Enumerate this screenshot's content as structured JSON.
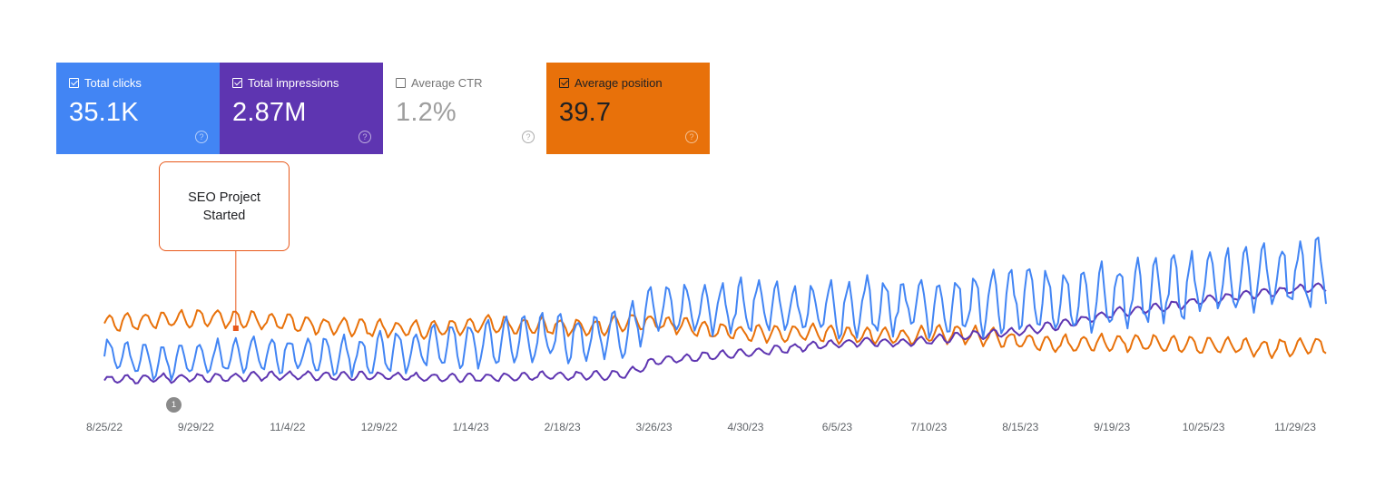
{
  "metrics": [
    {
      "label": "Total clicks",
      "value": "35.1K",
      "checked": true
    },
    {
      "label": "Total impressions",
      "value": "2.87M",
      "checked": true
    },
    {
      "label": "Average CTR",
      "value": "1.2%",
      "checked": false
    },
    {
      "label": "Average position",
      "value": "39.7",
      "checked": true
    }
  ],
  "colors": {
    "clicks": "#4285f4",
    "impressions": "#5e35b1",
    "position": "#e8710a",
    "annotation": "#e8581a"
  },
  "annotation": {
    "text": "SEO Project Started",
    "date": "2022-10-15"
  },
  "marker": {
    "label": "1",
    "date": "2022-10-08"
  },
  "chart_data": {
    "type": "line",
    "x_start": "2022-08-25",
    "x_end": "2023-12-12",
    "x_tick_labels": [
      "8/25/22",
      "9/29/22",
      "11/4/22",
      "12/9/22",
      "1/14/23",
      "2/18/23",
      "3/26/23",
      "4/30/23",
      "6/5/23",
      "7/10/23",
      "8/15/23",
      "9/19/23",
      "10/25/23",
      "11/29/23"
    ],
    "y_axes_hidden": true,
    "grid": false,
    "series": [
      {
        "name": "Total clicks",
        "color": "#4285f4",
        "points": [
          [
            "2022-08-25",
            62
          ],
          [
            "2022-09-15",
            58
          ],
          [
            "2022-10-06",
            60
          ],
          [
            "2022-10-27",
            62
          ],
          [
            "2022-11-17",
            61
          ],
          [
            "2022-12-08",
            62
          ],
          [
            "2022-12-29",
            65
          ],
          [
            "2023-01-19",
            67
          ],
          [
            "2023-02-09",
            70
          ],
          [
            "2023-03-02",
            70
          ],
          [
            "2023-03-16",
            74
          ],
          [
            "2023-03-26",
            85
          ],
          [
            "2023-04-15",
            85
          ],
          [
            "2023-05-05",
            86
          ],
          [
            "2023-05-25",
            84
          ],
          [
            "2023-06-14",
            86
          ],
          [
            "2023-07-04",
            87
          ],
          [
            "2023-07-24",
            86
          ],
          [
            "2023-08-13",
            89
          ],
          [
            "2023-09-02",
            89
          ],
          [
            "2023-09-22",
            91
          ],
          [
            "2023-10-12",
            95
          ],
          [
            "2023-11-01",
            98
          ],
          [
            "2023-11-21",
            100
          ],
          [
            "2023-12-12",
            103
          ]
        ],
        "swing": 7
      },
      {
        "name": "Total impressions",
        "color": "#5e35b1",
        "points": [
          [
            "2022-08-25",
            49
          ],
          [
            "2022-09-15",
            50
          ],
          [
            "2022-10-06",
            50
          ],
          [
            "2022-10-27",
            51
          ],
          [
            "2022-11-17",
            51
          ],
          [
            "2022-12-08",
            51
          ],
          [
            "2022-12-29",
            50
          ],
          [
            "2023-01-19",
            50
          ],
          [
            "2023-02-09",
            51
          ],
          [
            "2023-03-02",
            51
          ],
          [
            "2023-03-16",
            52
          ],
          [
            "2023-03-26",
            58
          ],
          [
            "2023-04-15",
            61
          ],
          [
            "2023-05-05",
            63
          ],
          [
            "2023-05-25",
            66
          ],
          [
            "2023-06-14",
            68
          ],
          [
            "2023-07-04",
            68
          ],
          [
            "2023-07-24",
            71
          ],
          [
            "2023-08-13",
            73
          ],
          [
            "2023-09-02",
            77
          ],
          [
            "2023-09-22",
            83
          ],
          [
            "2023-10-12",
            86
          ],
          [
            "2023-11-01",
            90
          ],
          [
            "2023-11-21",
            93
          ],
          [
            "2023-12-12",
            96
          ]
        ],
        "swing": 2
      },
      {
        "name": "Average position",
        "color": "#e8710a",
        "points": [
          [
            "2022-08-25",
            77
          ],
          [
            "2022-09-15",
            79
          ],
          [
            "2022-10-06",
            80
          ],
          [
            "2022-10-27",
            79
          ],
          [
            "2022-11-17",
            76
          ],
          [
            "2022-12-08",
            75
          ],
          [
            "2022-12-29",
            74
          ],
          [
            "2023-01-19",
            77
          ],
          [
            "2023-02-09",
            76
          ],
          [
            "2023-03-02",
            75
          ],
          [
            "2023-03-16",
            78
          ],
          [
            "2023-03-26",
            78
          ],
          [
            "2023-04-15",
            74
          ],
          [
            "2023-05-05",
            72
          ],
          [
            "2023-05-25",
            73
          ],
          [
            "2023-06-14",
            71
          ],
          [
            "2023-07-04",
            71
          ],
          [
            "2023-07-24",
            72
          ],
          [
            "2023-08-13",
            69
          ],
          [
            "2023-09-02",
            67
          ],
          [
            "2023-09-22",
            68
          ],
          [
            "2023-10-12",
            67
          ],
          [
            "2023-11-01",
            66
          ],
          [
            "2023-11-21",
            65
          ],
          [
            "2023-12-12",
            66
          ]
        ],
        "swing": 4
      }
    ]
  }
}
